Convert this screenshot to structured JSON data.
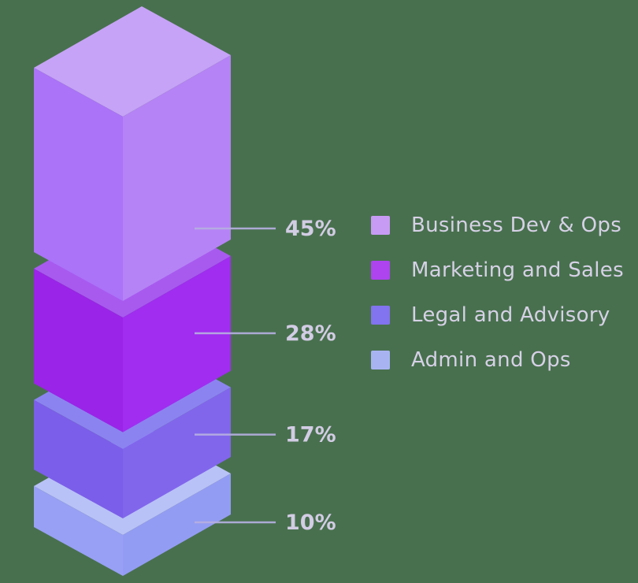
{
  "background_color": "#48704e",
  "chart_data": {
    "type": "bar",
    "variant": "isometric-3d-stacked-blocks",
    "title": "",
    "xlabel": "",
    "ylabel": "",
    "grid": false,
    "legend_position": "right",
    "categories": [
      "Business Dev & Ops",
      "Marketing and Sales",
      "Legal and Advisory",
      "Admin and Ops"
    ],
    "values": [
      45,
      28,
      17,
      10
    ],
    "value_labels": [
      "45%",
      "28%",
      "17%",
      "10%"
    ],
    "segments": [
      {
        "label": "Business Dev & Ops",
        "value": 45,
        "value_label": "45%",
        "swatch_color": "#c79bf4",
        "top_color": "#c6a3f6",
        "left_color": "#ab73f8",
        "right_color": "#b583f5"
      },
      {
        "label": "Marketing and Sales",
        "value": 28,
        "value_label": "28%",
        "swatch_color": "#ae44ef",
        "top_color": "#a85aef",
        "left_color": "#9a24e7",
        "right_color": "#a02df0"
      },
      {
        "label": "Legal and Advisory",
        "value": 17,
        "value_label": "17%",
        "swatch_color": "#8273ee",
        "top_color": "#8b84f0",
        "left_color": "#7b5ee9",
        "right_color": "#8166ec"
      },
      {
        "label": "Admin and Ops",
        "value": 10,
        "value_label": "10%",
        "swatch_color": "#a8b4f2",
        "top_color": "#b9c2f6",
        "left_color": "#97a0f4",
        "right_color": "#939cf3"
      }
    ],
    "callout_line_color": "#b5afe0",
    "value_label_color": "#d2cce4",
    "legend_text_color": "#d6d1e6"
  }
}
